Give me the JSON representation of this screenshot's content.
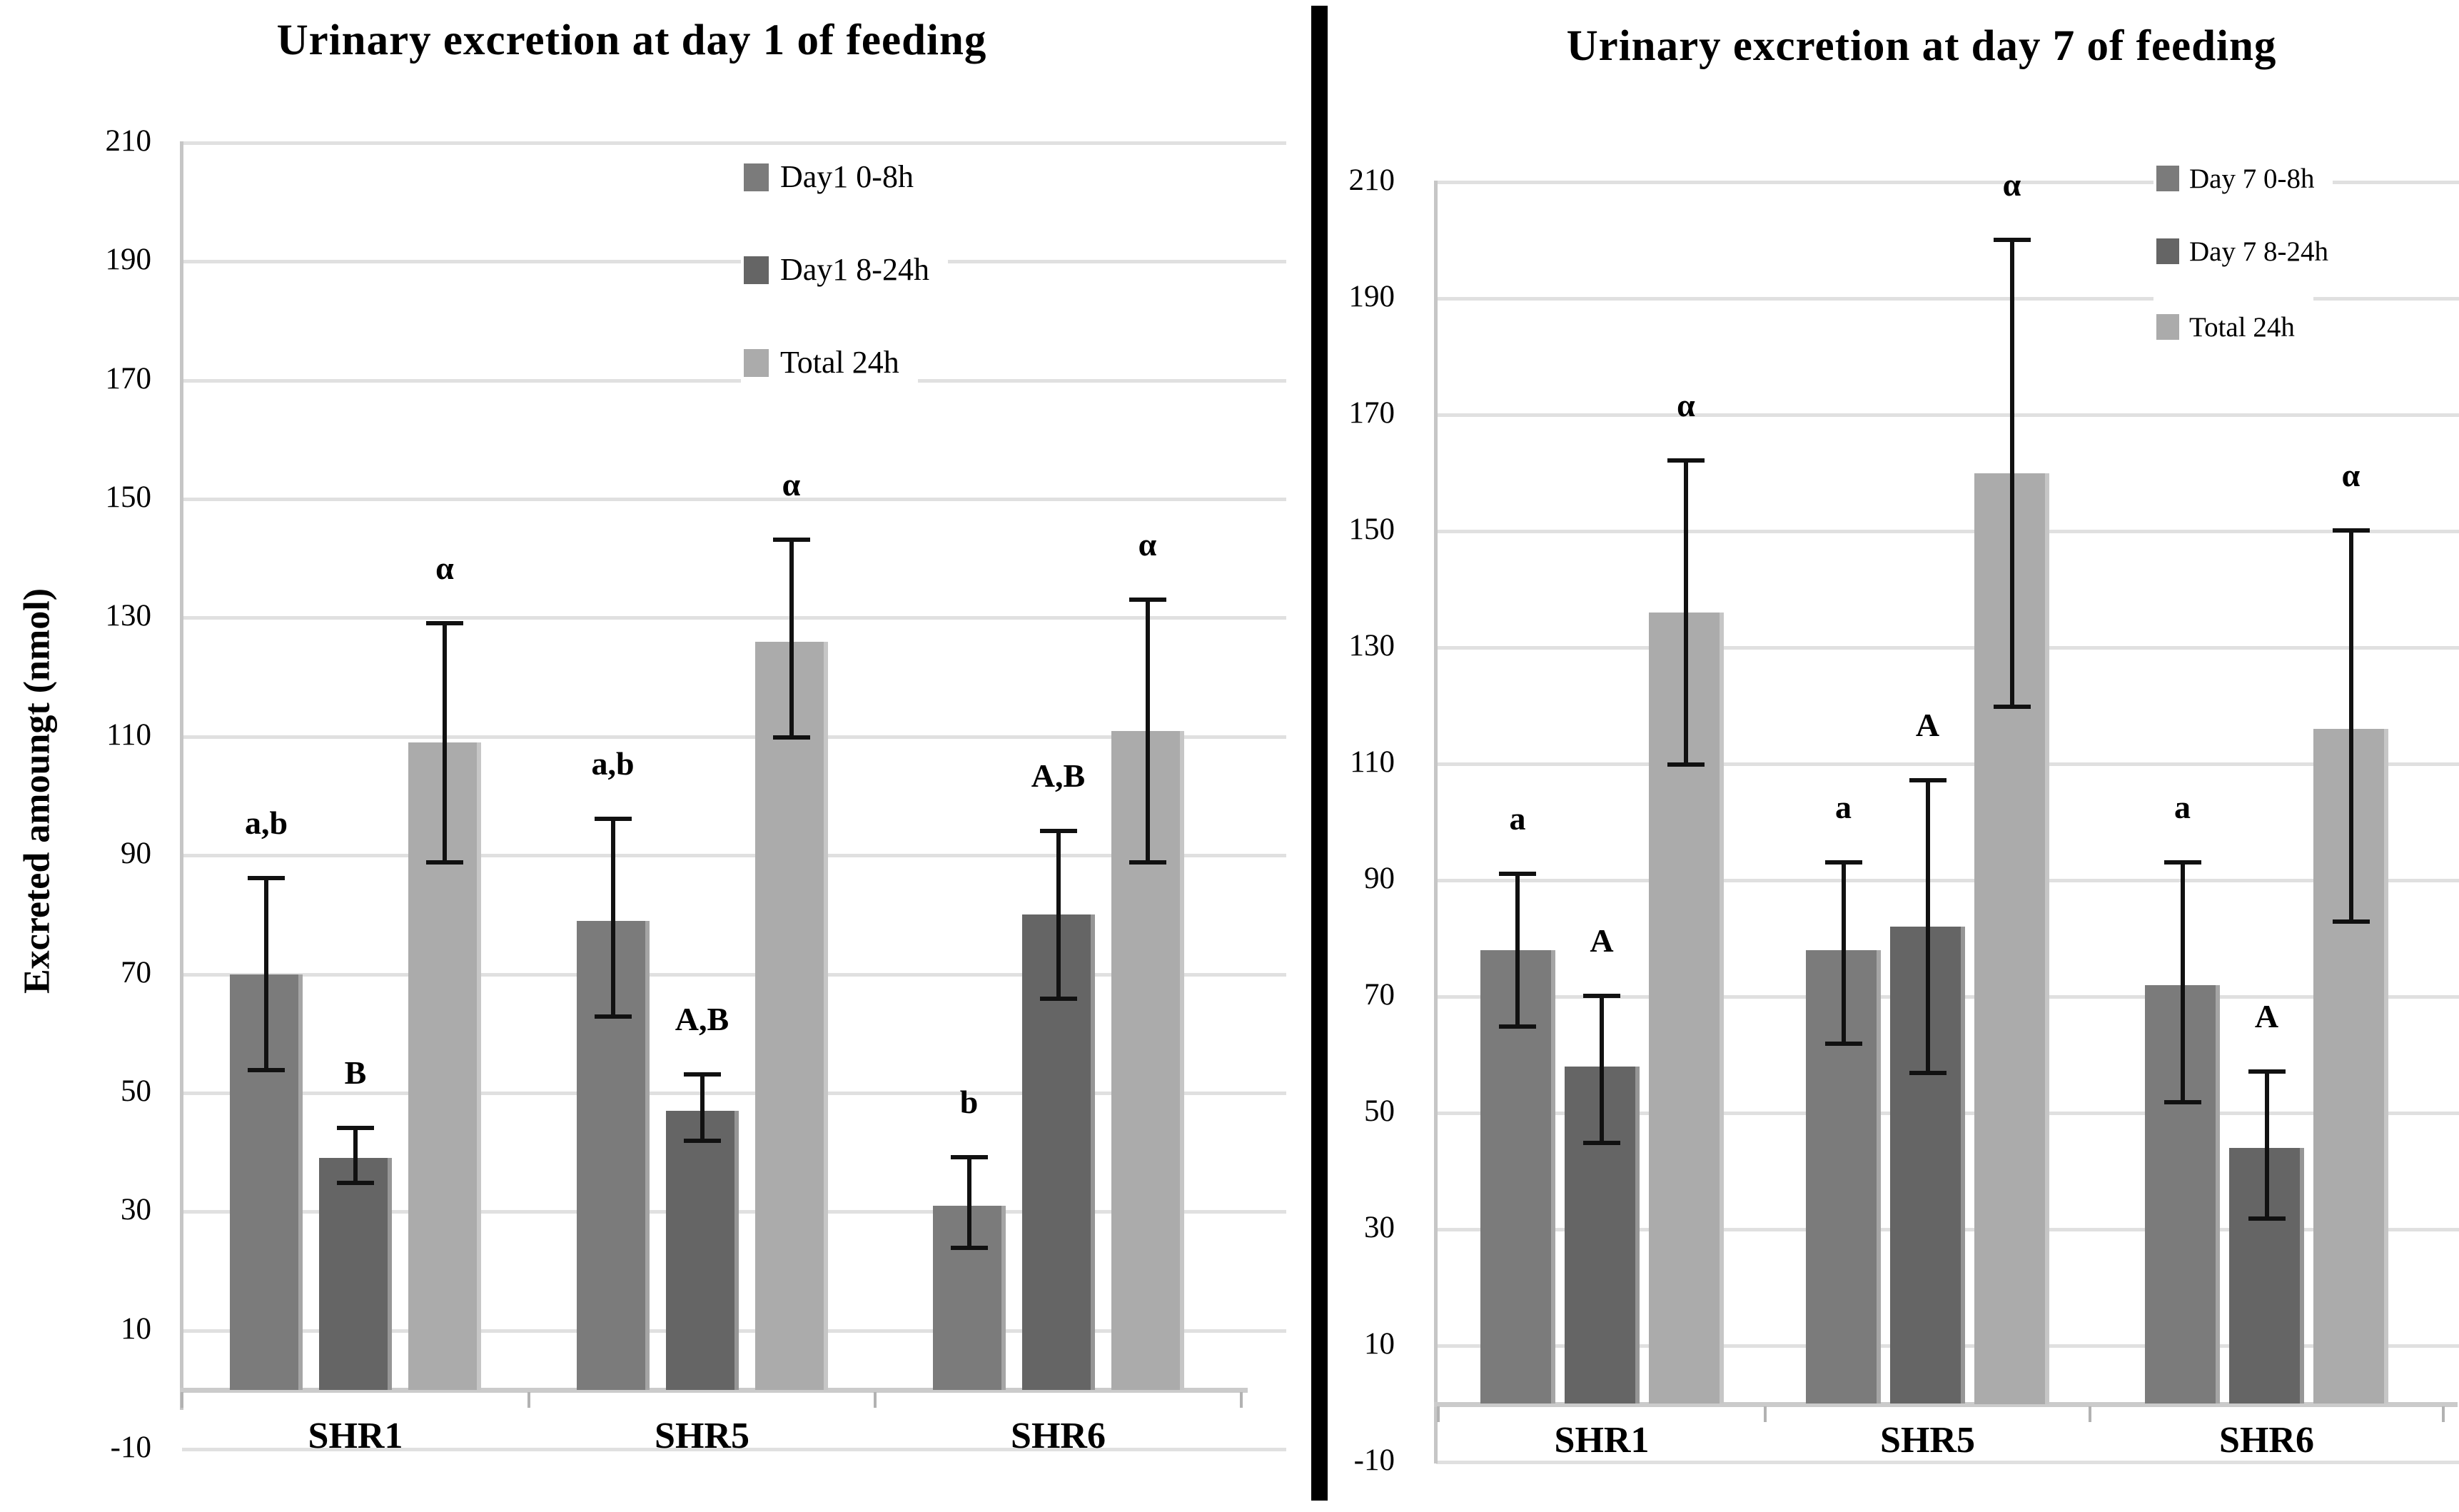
{
  "figure": {
    "background": "#ffffff",
    "divider_color": "#000000",
    "grid_color": "#e0e0e0",
    "error_bar_color": "#111111"
  },
  "chart_data": [
    {
      "type": "bar",
      "title": "Urinary excretion at day 1 of feeding",
      "ylabel": "Excreted amoungt (nmol)",
      "xlabel": "",
      "categories": [
        "SHR1",
        "SHR5",
        "SHR6"
      ],
      "ylim": [
        -10,
        210
      ],
      "ytick_step": 20,
      "grid": true,
      "legend_position": "top-center",
      "series": [
        {
          "name": "Day1 0-8h",
          "color": "#7b7b7b",
          "values": [
            70,
            79,
            31
          ],
          "err_low": [
            54,
            63,
            24
          ],
          "err_high": [
            86,
            96,
            39
          ],
          "annotations": [
            "a,b",
            "a,b",
            "b"
          ]
        },
        {
          "name": "Day1 8-24h",
          "color": "#656565",
          "values": [
            39,
            47,
            80
          ],
          "err_low": [
            35,
            42,
            66
          ],
          "err_high": [
            44,
            53,
            94
          ],
          "annotations": [
            "B",
            "A,B",
            "A,B"
          ]
        },
        {
          "name": "Total 24h",
          "color": "#ababab",
          "values": [
            109,
            126,
            111
          ],
          "err_low": [
            89,
            110,
            89
          ],
          "err_high": [
            129,
            143,
            133
          ],
          "annotations": [
            "α",
            "α",
            "α"
          ]
        }
      ]
    },
    {
      "type": "bar",
      "title": "Urinary excretion at day 7 of feeding",
      "ylabel": "",
      "xlabel": "",
      "categories": [
        "SHR1",
        "SHR5",
        "SHR6"
      ],
      "ylim": [
        -10,
        210
      ],
      "ytick_step": 20,
      "grid": true,
      "legend_position": "top-right",
      "series": [
        {
          "name": "Day 7 0-8h",
          "color": "#7b7b7b",
          "values": [
            78,
            78,
            72
          ],
          "err_low": [
            65,
            62,
            52
          ],
          "err_high": [
            91,
            93,
            93
          ],
          "annotations": [
            "a",
            "a",
            "a"
          ]
        },
        {
          "name": "Day 7 8-24h",
          "color": "#656565",
          "values": [
            58,
            82,
            44
          ],
          "err_low": [
            45,
            57,
            32
          ],
          "err_high": [
            70,
            107,
            57
          ],
          "annotations": [
            "A",
            "A",
            "A"
          ]
        },
        {
          "name": "Total 24h",
          "color": "#ababab",
          "values": [
            136,
            160,
            116
          ],
          "err_low": [
            110,
            120,
            83
          ],
          "err_high": [
            162,
            200,
            150
          ],
          "annotations": [
            "α",
            "α",
            "α"
          ]
        }
      ]
    }
  ]
}
